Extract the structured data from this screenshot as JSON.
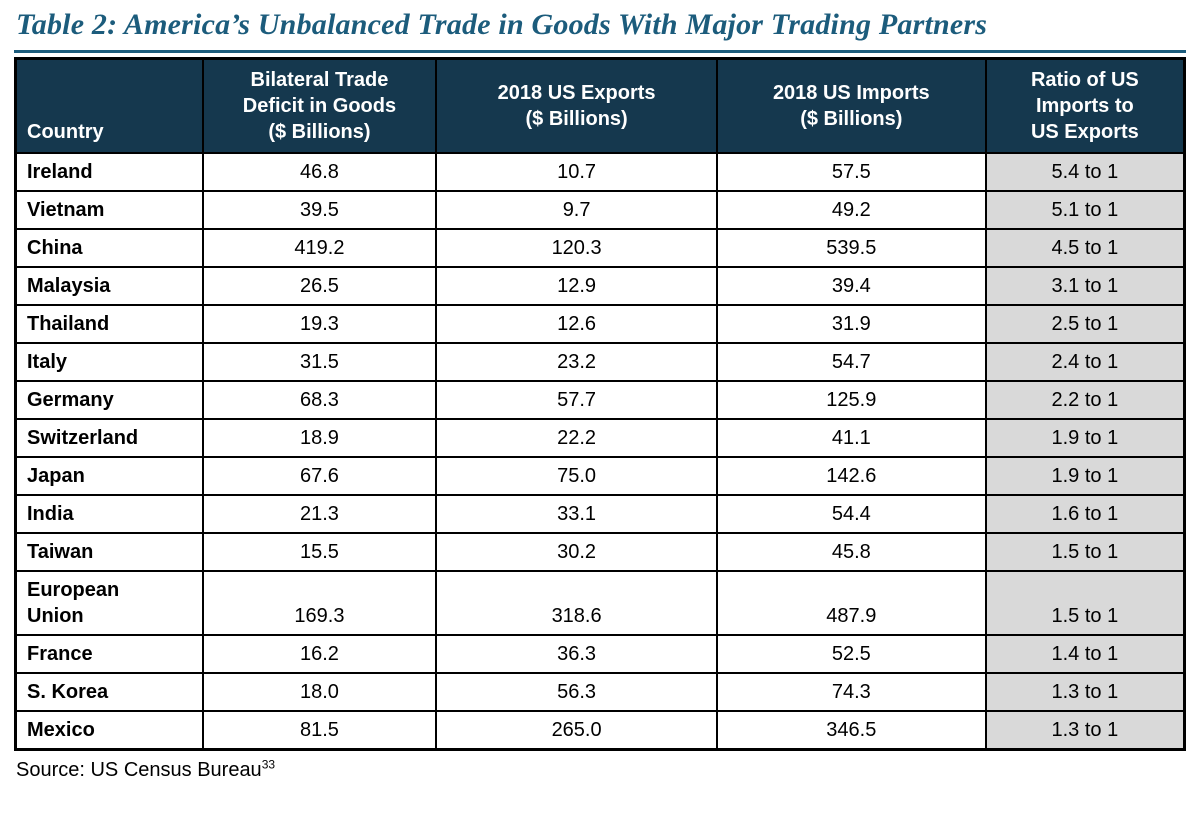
{
  "title": "Table 2: America’s Unbalanced Trade in Goods With Major Trading Partners",
  "colors": {
    "header_bg": "#15384e",
    "ratio_column_bg": "#d9d9d9",
    "title": "#1c5c7c",
    "border": "#000000"
  },
  "table": {
    "columns": [
      "Country",
      "Bilateral Trade\nDeficit in Goods\n($ Billions)",
      "2018 US Exports\n($ Billions)",
      "2018 US Imports\n($ Billions)",
      "Ratio of US\nImports to\nUS Exports"
    ],
    "rows": [
      {
        "country": "Ireland",
        "deficit": "46.8",
        "exports": "10.7",
        "imports": "57.5",
        "ratio": "5.4 to 1"
      },
      {
        "country": "Vietnam",
        "deficit": "39.5",
        "exports": "9.7",
        "imports": "49.2",
        "ratio": "5.1 to 1"
      },
      {
        "country": "China",
        "deficit": "419.2",
        "exports": "120.3",
        "imports": "539.5",
        "ratio": "4.5 to 1"
      },
      {
        "country": "Malaysia",
        "deficit": "26.5",
        "exports": "12.9",
        "imports": "39.4",
        "ratio": "3.1 to 1"
      },
      {
        "country": "Thailand",
        "deficit": "19.3",
        "exports": "12.6",
        "imports": "31.9",
        "ratio": "2.5 to 1"
      },
      {
        "country": "Italy",
        "deficit": "31.5",
        "exports": "23.2",
        "imports": "54.7",
        "ratio": "2.4 to 1"
      },
      {
        "country": "Germany",
        "deficit": "68.3",
        "exports": "57.7",
        "imports": "125.9",
        "ratio": "2.2 to 1"
      },
      {
        "country": "Switzerland",
        "deficit": "18.9",
        "exports": "22.2",
        "imports": "41.1",
        "ratio": "1.9 to 1"
      },
      {
        "country": "Japan",
        "deficit": "67.6",
        "exports": "75.0",
        "imports": "142.6",
        "ratio": "1.9 to 1"
      },
      {
        "country": "India",
        "deficit": "21.3",
        "exports": "33.1",
        "imports": "54.4",
        "ratio": "1.6 to 1"
      },
      {
        "country": "Taiwan",
        "deficit": "15.5",
        "exports": "30.2",
        "imports": "45.8",
        "ratio": "1.5 to 1"
      },
      {
        "country": "European\nUnion",
        "deficit": "169.3",
        "exports": "318.6",
        "imports": "487.9",
        "ratio": "1.5 to 1"
      },
      {
        "country": "France",
        "deficit": "16.2",
        "exports": "36.3",
        "imports": "52.5",
        "ratio": "1.4 to 1"
      },
      {
        "country": "S. Korea",
        "deficit": "18.0",
        "exports": "56.3",
        "imports": "74.3",
        "ratio": "1.3 to 1"
      },
      {
        "country": "Mexico",
        "deficit": "81.5",
        "exports": "265.0",
        "imports": "346.5",
        "ratio": "1.3 to 1"
      }
    ]
  },
  "source": {
    "label": "Source: US Census Bureau",
    "superscript": "33"
  }
}
